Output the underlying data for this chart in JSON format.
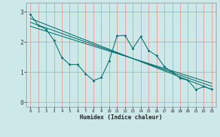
{
  "xlabel": "Humidex (Indice chaleur)",
  "xlim": [
    -0.5,
    23.5
  ],
  "ylim": [
    -0.15,
    3.3
  ],
  "xticks": [
    0,
    1,
    2,
    3,
    4,
    5,
    6,
    7,
    8,
    9,
    10,
    11,
    12,
    13,
    14,
    15,
    16,
    17,
    18,
    19,
    20,
    21,
    22,
    23
  ],
  "yticks": [
    0,
    1,
    2,
    3
  ],
  "bg_color": "#cce8e8",
  "line_color": "#006e6e",
  "grid_color": "#e88888",
  "jagged_x": [
    0,
    1,
    2,
    3,
    4,
    5,
    6,
    7,
    8,
    9,
    10,
    11,
    12,
    13,
    14,
    15,
    16,
    17,
    18,
    19,
    20,
    21,
    22,
    23
  ],
  "jagged_y": [
    2.92,
    2.55,
    2.42,
    2.05,
    1.48,
    1.25,
    1.25,
    0.95,
    0.72,
    0.82,
    1.38,
    2.2,
    2.22,
    1.78,
    2.18,
    1.72,
    1.55,
    1.18,
    1.0,
    0.8,
    0.73,
    0.42,
    0.52,
    0.43
  ],
  "trend1_x": [
    0,
    23
  ],
  "trend1_y": [
    2.78,
    0.43
  ],
  "trend2_x": [
    0,
    23
  ],
  "trend2_y": [
    2.65,
    0.53
  ],
  "trend3_x": [
    0,
    23
  ],
  "trend3_y": [
    2.52,
    0.63
  ]
}
